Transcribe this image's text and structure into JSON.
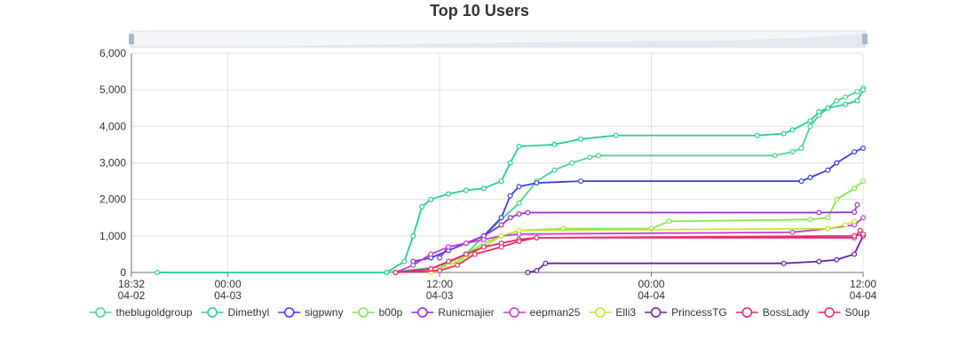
{
  "chart_data": {
    "type": "line",
    "title": "Top 10 Users",
    "xlabel": "",
    "ylabel": "",
    "x_range": [
      "04-02 18:32",
      "04-04 12:00"
    ],
    "ylim": [
      0,
      6000
    ],
    "y_ticks": [
      "0",
      "1,000",
      "2,000",
      "3,000",
      "4,000",
      "5,000",
      "6,000"
    ],
    "x_ticks": [
      {
        "x": "04-02 18:32",
        "line1": "18:32",
        "line2": "04-02"
      },
      {
        "x": "04-03 00:00",
        "line1": "00:00",
        "line2": "04-03"
      },
      {
        "x": "04-03 12:00",
        "line1": "12:00",
        "line2": "04-03"
      },
      {
        "x": "04-04 00:00",
        "line1": "00:00",
        "line2": "04-04"
      },
      {
        "x": "04-04 12:00",
        "line1": "12:00",
        "line2": "04-04"
      }
    ],
    "grid": true,
    "legend_position": "bottom",
    "data_zoom": true,
    "series": [
      {
        "name": "theblugoldgroup",
        "color": "#48d68a",
        "points": [
          [
            "04-03 09:00",
            0
          ],
          [
            "04-03 12:00",
            150
          ],
          [
            "04-03 13:30",
            500
          ],
          [
            "04-03 14:30",
            1000
          ],
          [
            "04-03 16:30",
            1900
          ],
          [
            "04-03 17:30",
            2500
          ],
          [
            "04-03 18:30",
            2800
          ],
          [
            "04-03 19:30",
            3000
          ],
          [
            "04-03 20:30",
            3150
          ],
          [
            "04-03 21:00",
            3200
          ],
          [
            "04-04 07:00",
            3200
          ],
          [
            "04-04 08:00",
            3300
          ],
          [
            "04-04 08:30",
            3400
          ],
          [
            "04-04 09:00",
            4000
          ],
          [
            "04-04 09:30",
            4300
          ],
          [
            "04-04 10:00",
            4500
          ],
          [
            "04-04 10:30",
            4700
          ],
          [
            "04-04 11:00",
            4800
          ],
          [
            "04-04 11:40",
            4950
          ],
          [
            "04-04 12:00",
            5050
          ]
        ]
      },
      {
        "name": "Dimethyl",
        "color": "#22cc9c",
        "points": [
          [
            "04-02 20:00",
            0
          ],
          [
            "04-03 09:00",
            0
          ],
          [
            "04-03 10:00",
            300
          ],
          [
            "04-03 10:30",
            1000
          ],
          [
            "04-03 11:00",
            1800
          ],
          [
            "04-03 11:30",
            2000
          ],
          [
            "04-03 12:30",
            2150
          ],
          [
            "04-03 13:30",
            2250
          ],
          [
            "04-03 14:30",
            2300
          ],
          [
            "04-03 15:30",
            2500
          ],
          [
            "04-03 16:00",
            3000
          ],
          [
            "04-03 16:30",
            3450
          ],
          [
            "04-03 18:30",
            3500
          ],
          [
            "04-03 20:00",
            3650
          ],
          [
            "04-03 22:00",
            3750
          ],
          [
            "04-04 06:00",
            3750
          ],
          [
            "04-04 07:30",
            3800
          ],
          [
            "04-04 08:00",
            3900
          ],
          [
            "04-04 09:00",
            4150
          ],
          [
            "04-04 09:30",
            4400
          ],
          [
            "04-04 10:00",
            4500
          ],
          [
            "04-04 11:00",
            4600
          ],
          [
            "04-04 11:40",
            4700
          ],
          [
            "04-04 12:00",
            5000
          ]
        ]
      },
      {
        "name": "sigpwny",
        "color": "#3a3ce0",
        "points": [
          [
            "04-03 10:30",
            300
          ],
          [
            "04-03 11:30",
            400
          ],
          [
            "04-03 12:30",
            600
          ],
          [
            "04-03 13:30",
            800
          ],
          [
            "04-03 14:30",
            1000
          ],
          [
            "04-03 15:30",
            1500
          ],
          [
            "04-03 16:00",
            2100
          ],
          [
            "04-03 16:30",
            2350
          ],
          [
            "04-03 17:30",
            2450
          ],
          [
            "04-03 20:00",
            2500
          ],
          [
            "04-04 08:30",
            2500
          ],
          [
            "04-04 09:00",
            2600
          ],
          [
            "04-04 10:00",
            2800
          ],
          [
            "04-04 10:30",
            3000
          ],
          [
            "04-04 11:30",
            3300
          ],
          [
            "04-04 12:00",
            3400
          ]
        ]
      },
      {
        "name": "b00p",
        "color": "#88e64a",
        "points": [
          [
            "04-03 12:00",
            100
          ],
          [
            "04-03 13:00",
            300
          ],
          [
            "04-03 13:30",
            500
          ],
          [
            "04-03 14:30",
            800
          ],
          [
            "04-03 15:30",
            1000
          ],
          [
            "04-03 16:30",
            1150
          ],
          [
            "04-03 19:00",
            1200
          ],
          [
            "04-04 00:00",
            1200
          ],
          [
            "04-04 01:00",
            1400
          ],
          [
            "04-04 09:00",
            1450
          ],
          [
            "04-04 10:00",
            1500
          ],
          [
            "04-04 10:30",
            2000
          ],
          [
            "04-04 11:30",
            2300
          ],
          [
            "04-04 12:00",
            2500
          ]
        ]
      },
      {
        "name": "Runicmajier",
        "color": "#9a2ad0",
        "points": [
          [
            "04-03 12:00",
            400
          ],
          [
            "04-03 12:30",
            700
          ],
          [
            "04-03 13:30",
            800
          ],
          [
            "04-03 14:30",
            1000
          ],
          [
            "04-03 15:30",
            1300
          ],
          [
            "04-03 16:00",
            1500
          ],
          [
            "04-03 16:30",
            1600
          ],
          [
            "04-03 17:00",
            1640
          ],
          [
            "04-04 09:30",
            1640
          ],
          [
            "04-04 11:30",
            1650
          ],
          [
            "04-04 11:40",
            1850
          ]
        ]
      },
      {
        "name": "eepman25",
        "color": "#c83ad6",
        "points": [
          [
            "04-03 09:30",
            0
          ],
          [
            "04-03 10:30",
            200
          ],
          [
            "04-03 11:30",
            500
          ],
          [
            "04-03 12:30",
            700
          ],
          [
            "04-03 13:30",
            800
          ],
          [
            "04-03 14:30",
            900
          ],
          [
            "04-03 15:30",
            1000
          ],
          [
            "04-03 16:30",
            1050
          ],
          [
            "04-04 08:00",
            1100
          ],
          [
            "04-04 10:00",
            1200
          ],
          [
            "04-04 11:30",
            1300
          ],
          [
            "04-04 12:00",
            1500
          ]
        ]
      },
      {
        "name": "Elli3",
        "color": "#c4e82a",
        "points": [
          [
            "04-03 11:30",
            0
          ],
          [
            "04-03 12:30",
            200
          ],
          [
            "04-03 13:30",
            400
          ],
          [
            "04-03 14:30",
            700
          ],
          [
            "04-03 15:30",
            1000
          ],
          [
            "04-03 16:30",
            1150
          ],
          [
            "04-04 10:00",
            1200
          ],
          [
            "04-04 11:00",
            1300
          ],
          [
            "04-04 11:30",
            1400
          ]
        ]
      },
      {
        "name": "PrincessTG",
        "color": "#6a1ca8",
        "points": [
          [
            "04-03 17:00",
            0
          ],
          [
            "04-03 17:30",
            50
          ],
          [
            "04-03 18:00",
            250
          ],
          [
            "04-04 07:30",
            250
          ],
          [
            "04-04 09:30",
            300
          ],
          [
            "04-04 10:30",
            350
          ],
          [
            "04-04 11:30",
            500
          ],
          [
            "04-04 12:00",
            1000
          ]
        ]
      },
      {
        "name": "BossLady",
        "color": "#e0226a",
        "points": [
          [
            "04-03 09:30",
            0
          ],
          [
            "04-03 11:30",
            100
          ],
          [
            "04-03 12:30",
            300
          ],
          [
            "04-03 13:30",
            500
          ],
          [
            "04-03 14:30",
            700
          ],
          [
            "04-03 15:30",
            800
          ],
          [
            "04-03 16:30",
            900
          ],
          [
            "04-03 17:30",
            950
          ],
          [
            "04-04 11:30",
            950
          ],
          [
            "04-04 11:50",
            1150
          ]
        ]
      },
      {
        "name": "S0up",
        "color": "#f0286c",
        "points": [
          [
            "04-03 09:30",
            0
          ],
          [
            "04-03 12:00",
            50
          ],
          [
            "04-03 13:00",
            200
          ],
          [
            "04-03 14:00",
            500
          ],
          [
            "04-03 15:30",
            700
          ],
          [
            "04-03 16:30",
            850
          ],
          [
            "04-03 17:30",
            950
          ],
          [
            "04-04 11:30",
            1000
          ],
          [
            "04-04 12:00",
            1050
          ]
        ]
      }
    ]
  }
}
